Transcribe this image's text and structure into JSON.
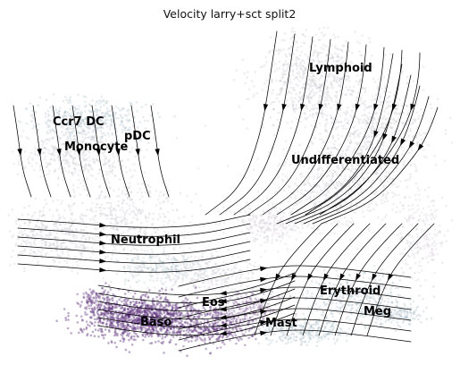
{
  "chart_data": {
    "type": "scatter",
    "title": "Velocity larry+sct split2",
    "xlabel": "",
    "ylabel": "",
    "grid": false,
    "legend": "none",
    "embedding": "UMAP with RNA velocity streamlines",
    "colors": {
      "cell_default": "#cbc6cf",
      "cell_bluegrey": "#a9bcc6",
      "cell_purple": "#5b2e7a",
      "cell_purple_light": "#8a6aa0",
      "streamline": "#000000"
    },
    "cluster_labels": [
      {
        "name": "Lymphoid"
      },
      {
        "name": "Ccr7 DC"
      },
      {
        "name": "pDC"
      },
      {
        "name": "Monocyte"
      },
      {
        "name": "Undifferentiated"
      },
      {
        "name": "Neutrophil"
      },
      {
        "name": "Eos"
      },
      {
        "name": "Erythroid"
      },
      {
        "name": "Baso"
      },
      {
        "name": "Mast"
      },
      {
        "name": "Meg"
      }
    ]
  }
}
